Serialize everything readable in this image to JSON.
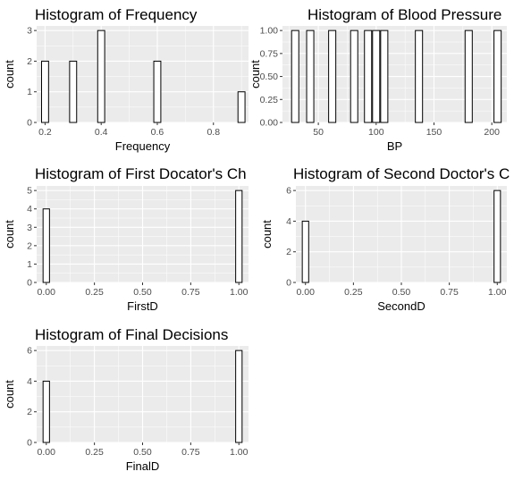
{
  "chart_data": [
    {
      "type": "bar",
      "title": "Histogram of Frequency",
      "xlabel": "Frequency",
      "ylabel": "count",
      "xlim": [
        0.17,
        0.925
      ],
      "ylim": [
        0,
        3.15
      ],
      "xticks": [
        0.2,
        0.4,
        0.6,
        0.8
      ],
      "xtick_labels": [
        "0.2",
        "0.4",
        "0.6",
        "0.8"
      ],
      "yticks": [
        0,
        1,
        2,
        3
      ],
      "ytick_labels": [
        "0",
        "1",
        "2",
        "3"
      ],
      "bin_width": 0.025,
      "bins": [
        {
          "x": 0.2,
          "count": 2
        },
        {
          "x": 0.3,
          "count": 2
        },
        {
          "x": 0.4,
          "count": 3
        },
        {
          "x": 0.6,
          "count": 2
        },
        {
          "x": 0.9,
          "count": 1
        }
      ],
      "grid": true
    },
    {
      "type": "bar",
      "title": "Histogram of Blood Pressure",
      "xlabel": "BP",
      "ylabel": "count",
      "xlim": [
        19,
        213
      ],
      "ylim": [
        0,
        1.05
      ],
      "xticks": [
        50,
        100,
        150,
        200
      ],
      "xtick_labels": [
        "50",
        "100",
        "150",
        "200"
      ],
      "yticks": [
        0,
        0.25,
        0.5,
        0.75,
        1
      ],
      "ytick_labels": [
        "0.00",
        "0.25",
        "0.50",
        "0.75",
        "1.00"
      ],
      "bin_width": 6.2,
      "bins": [
        {
          "x": 30,
          "count": 1
        },
        {
          "x": 43,
          "count": 1
        },
        {
          "x": 62,
          "count": 1
        },
        {
          "x": 81,
          "count": 1
        },
        {
          "x": 93,
          "count": 1
        },
        {
          "x": 100,
          "count": 1
        },
        {
          "x": 107,
          "count": 1
        },
        {
          "x": 137,
          "count": 1
        },
        {
          "x": 180,
          "count": 1
        },
        {
          "x": 205,
          "count": 1
        }
      ],
      "grid": true
    },
    {
      "type": "bar",
      "title": "Histogram of First Docator's Ch",
      "xlabel": "FirstD",
      "ylabel": "count",
      "xlim": [
        -0.05,
        1.05
      ],
      "ylim": [
        0,
        5.25
      ],
      "xticks": [
        0,
        0.25,
        0.5,
        0.75,
        1
      ],
      "xtick_labels": [
        "0.00",
        "0.25",
        "0.50",
        "0.75",
        "1.00"
      ],
      "yticks": [
        0,
        1,
        2,
        3,
        4,
        5
      ],
      "ytick_labels": [
        "0",
        "1",
        "2",
        "3",
        "4",
        "5"
      ],
      "bin_width": 0.0333,
      "bins": [
        {
          "x": 0,
          "count": 4
        },
        {
          "x": 1,
          "count": 5
        }
      ],
      "grid": true
    },
    {
      "type": "bar",
      "title": "Histogram of Second Doctor's C",
      "xlabel": "SecondD",
      "ylabel": "count",
      "xlim": [
        -0.05,
        1.05
      ],
      "ylim": [
        0,
        6.3
      ],
      "xticks": [
        0,
        0.25,
        0.5,
        0.75,
        1
      ],
      "xtick_labels": [
        "0.00",
        "0.25",
        "0.50",
        "0.75",
        "1.00"
      ],
      "yticks": [
        0,
        2,
        4,
        6
      ],
      "ytick_labels": [
        "0",
        "2",
        "4",
        "6"
      ],
      "bin_width": 0.0333,
      "bins": [
        {
          "x": 0,
          "count": 4
        },
        {
          "x": 1,
          "count": 6
        }
      ],
      "grid": true
    },
    {
      "type": "bar",
      "title": "Histogram of Final Decisions",
      "xlabel": "FinalD",
      "ylabel": "count",
      "xlim": [
        -0.05,
        1.05
      ],
      "ylim": [
        0,
        6.3
      ],
      "xticks": [
        0,
        0.25,
        0.5,
        0.75,
        1
      ],
      "xtick_labels": [
        "0.00",
        "0.25",
        "0.50",
        "0.75",
        "1.00"
      ],
      "yticks": [
        0,
        2,
        4,
        6
      ],
      "ytick_labels": [
        "0",
        "2",
        "4",
        "6"
      ],
      "bin_width": 0.0333,
      "bins": [
        {
          "x": 0,
          "count": 4
        },
        {
          "x": 1,
          "count": 6
        }
      ],
      "grid": true
    }
  ],
  "colors": {
    "panel_background": "#ebebeb",
    "grid": "#ffffff",
    "bar_fill": "#ffffff",
    "bar_outline": "#000000",
    "tick_label": "#4d4d4d"
  }
}
